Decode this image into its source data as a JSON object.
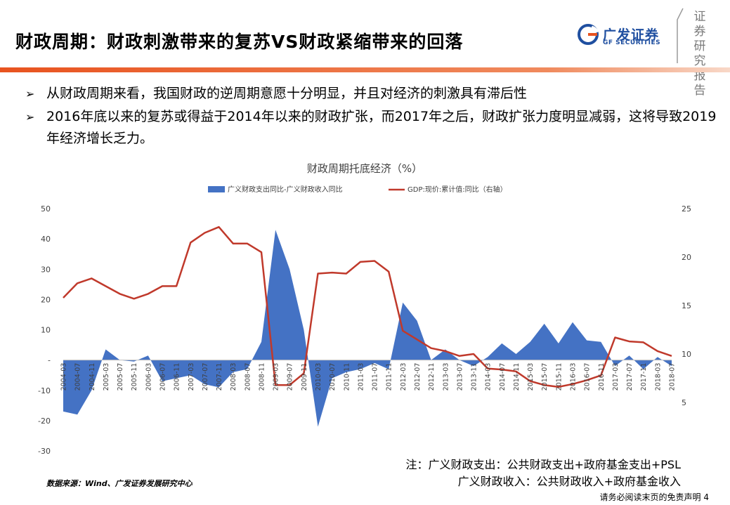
{
  "header": {
    "title": "财政周期：财政刺激带来的复苏VS财政紧缩带来的回落",
    "logo_cn": "广发证券",
    "logo_en": "GF SECURITIES",
    "stamp_text": "证券研究报告",
    "accent_color": "#e8531f",
    "brand_color": "#1f4fa0"
  },
  "bullets": [
    {
      "marker": "➢",
      "text": "从财政周期来看，我国财政的逆周期意愿十分明显，并且对经济的刺激具有滞后性"
    },
    {
      "marker": "➢",
      "text": "2016年底以来的复苏或得益于2014年以来的财政扩张，而2017年之后，财政扩张力度明显减弱，这将导致2019年经济增长乏力。"
    }
  ],
  "chart_data": {
    "type": "area+line",
    "title": "财政周期托底经济（%）",
    "legend_placement": "top",
    "grid": false,
    "series": [
      {
        "name": "广义财政支出同比-广义财政收入同比",
        "kind": "area",
        "axis": "left",
        "color": "#4472c4",
        "points": [
          [
            "2004-03",
            -17
          ],
          [
            "2004-07",
            -18
          ],
          [
            "2004-11",
            -10
          ],
          [
            "2005-03",
            3.5
          ],
          [
            "2005-07",
            0
          ],
          [
            "2005-11",
            -0.5
          ],
          [
            "2006-03",
            1.5
          ],
          [
            "2006-07",
            -7
          ],
          [
            "2006-11",
            -6
          ],
          [
            "2007-03",
            -5
          ],
          [
            "2007-07",
            -8
          ],
          [
            "2007-11",
            -9
          ],
          [
            "2008-03",
            -4
          ],
          [
            "2008-07",
            -3
          ],
          [
            "2008-11",
            6
          ],
          [
            "2009-03",
            43
          ],
          [
            "2009-07",
            30
          ],
          [
            "2009-11",
            10
          ],
          [
            "2010-03",
            -22
          ],
          [
            "2010-07",
            -6
          ],
          [
            "2010-11",
            -4
          ],
          [
            "2011-03",
            -3
          ],
          [
            "2011-07",
            -1
          ],
          [
            "2011-11",
            -3
          ],
          [
            "2012-03",
            19
          ],
          [
            "2012-07",
            13
          ],
          [
            "2012-11",
            0
          ],
          [
            "2013-03",
            3.5
          ],
          [
            "2013-07",
            0
          ],
          [
            "2013-11",
            -2
          ],
          [
            "2014-03",
            1
          ],
          [
            "2014-07",
            5.5
          ],
          [
            "2014-11",
            2
          ],
          [
            "2015-03",
            6
          ],
          [
            "2015-07",
            12
          ],
          [
            "2015-11",
            5.5
          ],
          [
            "2016-03",
            12.5
          ],
          [
            "2016-07",
            6.5
          ],
          [
            "2016-11",
            6
          ],
          [
            "2017-03",
            -2
          ],
          [
            "2017-07",
            1.5
          ],
          [
            "2017-11",
            -3
          ],
          [
            "2018-03",
            1
          ],
          [
            "2018-07",
            -2
          ]
        ]
      },
      {
        "name": "GDP:现价:累计值:同比（右轴）",
        "kind": "line",
        "axis": "right",
        "color": "#c0392b",
        "points": [
          [
            "2004-03",
            15.8
          ],
          [
            "2004-07",
            17.3
          ],
          [
            "2004-11",
            17.8
          ],
          [
            "2005-03",
            17.0
          ],
          [
            "2005-07",
            16.2
          ],
          [
            "2005-11",
            15.7
          ],
          [
            "2006-03",
            16.2
          ],
          [
            "2006-07",
            17.0
          ],
          [
            "2006-11",
            17.0
          ],
          [
            "2007-03",
            21.5
          ],
          [
            "2007-07",
            22.5
          ],
          [
            "2007-11",
            23.1
          ],
          [
            "2008-03",
            21.4
          ],
          [
            "2008-07",
            21.4
          ],
          [
            "2008-11",
            20.5
          ],
          [
            "2009-03",
            6.8
          ],
          [
            "2009-07",
            6.8
          ],
          [
            "2009-11",
            8.0
          ],
          [
            "2010-03",
            18.3
          ],
          [
            "2010-07",
            18.4
          ],
          [
            "2010-11",
            18.3
          ],
          [
            "2011-03",
            19.5
          ],
          [
            "2011-07",
            19.6
          ],
          [
            "2011-11",
            18.5
          ],
          [
            "2012-03",
            12.4
          ],
          [
            "2012-07",
            11.5
          ],
          [
            "2012-11",
            10.6
          ],
          [
            "2013-03",
            10.3
          ],
          [
            "2013-07",
            9.8
          ],
          [
            "2013-11",
            10.0
          ],
          [
            "2014-03",
            8.5
          ],
          [
            "2014-07",
            8.4
          ],
          [
            "2014-11",
            8.2
          ],
          [
            "2015-03",
            7.2
          ],
          [
            "2015-07",
            6.8
          ],
          [
            "2015-11",
            6.6
          ],
          [
            "2016-03",
            6.9
          ],
          [
            "2016-07",
            7.3
          ],
          [
            "2016-11",
            7.8
          ],
          [
            "2017-03",
            11.7
          ],
          [
            "2017-07",
            11.3
          ],
          [
            "2017-11",
            11.2
          ],
          [
            "2018-03",
            10.3
          ],
          [
            "2018-07",
            9.8
          ]
        ]
      }
    ],
    "y_left": {
      "min": -30,
      "max": 50,
      "ticks": [
        "50",
        "40",
        "30",
        "20",
        "10",
        "-",
        "-10",
        "-20",
        "-30"
      ]
    },
    "y_right": {
      "min": 0,
      "max": 25,
      "ticks": [
        "25",
        "20",
        "15",
        "10",
        "5"
      ]
    },
    "x_labels": [
      "2004-03",
      "2004-07",
      "2004-11",
      "2005-03",
      "2005-07",
      "2005-11",
      "2006-03",
      "2006-07",
      "2006-11",
      "2007-03",
      "2007-07",
      "2007-11",
      "2008-03",
      "2008-07",
      "2008-11",
      "2009-03",
      "2009-07",
      "2009-11",
      "2010-03",
      "2010-07",
      "2010-11",
      "2011-03",
      "2011-07",
      "2011-11",
      "2012-03",
      "2012-07",
      "2012-11",
      "2013-03",
      "2013-07",
      "2013-11",
      "2014-03",
      "2014-07",
      "2014-11",
      "2015-03",
      "2015-07",
      "2015-11",
      "2016-03",
      "2016-07",
      "2016-11",
      "2017-03",
      "2017-07",
      "2017-11",
      "2018-03",
      "2018-07"
    ]
  },
  "notes": {
    "line1": "注：广义财政支出：公共财政支出+政府基金支出+PSL",
    "line2": "广义财政收入：公共财政收入+政府基金收入"
  },
  "source": "数据来源：Wind、广发证券发展研究中心",
  "footer": "请务必阅读末页的免责声明 4"
}
